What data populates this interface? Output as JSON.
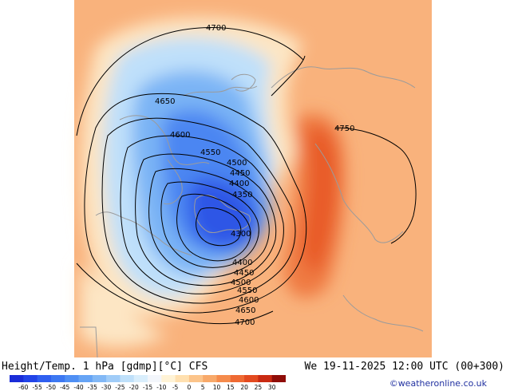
{
  "header": {
    "title": "Height/Temp. 1 hPa [gdmp][°C] CFS",
    "datetime": "We 19-11-2025 12:00 UTC (00+300)"
  },
  "credit": "©weatheronline.co.uk",
  "contour_labels": [
    "4700",
    "4650",
    "4600",
    "4550",
    "4500",
    "4450",
    "4400",
    "4350",
    "4300",
    "4400",
    "4450",
    "4500",
    "4550",
    "4600",
    "4650",
    "4700",
    "4750"
  ],
  "colorbar": {
    "ticks": [
      "-60",
      "-55",
      "-50",
      "-45",
      "-40",
      "-35",
      "-30",
      "-25",
      "-20",
      "-15",
      "-10",
      "-5",
      "0",
      "5",
      "10",
      "15",
      "20",
      "25",
      "30"
    ],
    "colors": [
      "#1a2cd8",
      "#2244e8",
      "#2f5ff0",
      "#3d78f2",
      "#4f8ff4",
      "#66a4f5",
      "#82b8f6",
      "#a0ccf8",
      "#bfe0fa",
      "#d9eefc",
      "#f3f6fb",
      "#fff3d6",
      "#ffe0b0",
      "#fcc48a",
      "#f8a96a",
      "#f58b4c",
      "#ef6a33",
      "#e34a20",
      "#c92a12",
      "#8f0d08"
    ]
  }
}
